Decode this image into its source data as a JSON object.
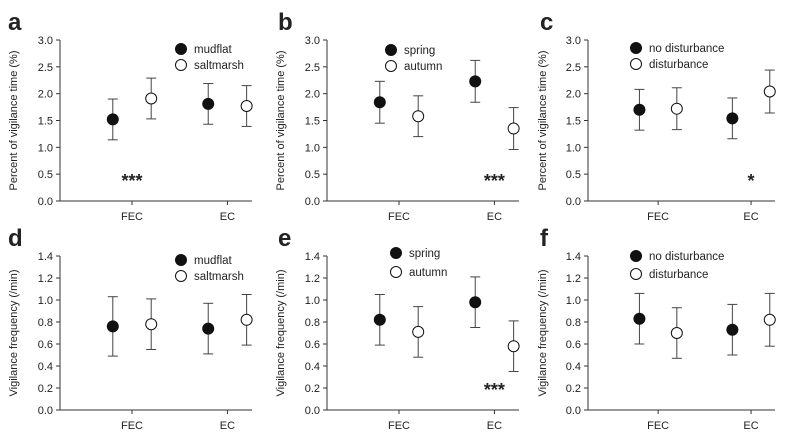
{
  "chart_data": [
    {
      "panel": "a",
      "type": "scatter",
      "categories": [
        "FEC",
        "EC"
      ],
      "ylabel": "Percent of vigilance time (%)",
      "ylim": [
        0,
        3.0
      ],
      "yticks": [
        "0.0",
        "0.5",
        "1.0",
        "1.5",
        "2.0",
        "2.5",
        "3.0"
      ],
      "series": [
        {
          "name": "mudflat",
          "marker": "filled",
          "values": [
            1.52,
            1.81
          ],
          "errors": [
            0.38,
            0.38
          ]
        },
        {
          "name": "saltmarsh",
          "marker": "open",
          "values": [
            1.91,
            1.77
          ],
          "errors": [
            0.38,
            0.38
          ]
        }
      ],
      "annotations": [
        {
          "text": "***",
          "category": "FEC"
        }
      ]
    },
    {
      "panel": "b",
      "type": "scatter",
      "categories": [
        "FEC",
        "EC"
      ],
      "ylabel": "Percent of vigilance time (%)",
      "ylim": [
        0,
        3.0
      ],
      "yticks": [
        "0.0",
        "0.5",
        "1.0",
        "1.5",
        "2.0",
        "2.5",
        "3.0"
      ],
      "series": [
        {
          "name": "spring",
          "marker": "filled",
          "values": [
            1.84,
            2.23
          ],
          "errors": [
            0.39,
            0.39
          ]
        },
        {
          "name": "autumn",
          "marker": "open",
          "values": [
            1.58,
            1.35
          ],
          "errors": [
            0.38,
            0.39
          ]
        }
      ],
      "annotations": [
        {
          "text": "***",
          "category": "EC"
        }
      ]
    },
    {
      "panel": "c",
      "type": "scatter",
      "categories": [
        "FEC",
        "EC"
      ],
      "ylabel": "Percent of vigilance time (%)",
      "ylim": [
        0,
        3.0
      ],
      "yticks": [
        "0.0",
        "0.5",
        "1.0",
        "1.5",
        "2.0",
        "2.5",
        "3.0"
      ],
      "series": [
        {
          "name": "no disturbance",
          "marker": "filled",
          "values": [
            1.7,
            1.54
          ],
          "errors": [
            0.38,
            0.38
          ]
        },
        {
          "name": "disturbance",
          "marker": "open",
          "values": [
            1.72,
            2.04
          ],
          "errors": [
            0.39,
            0.4
          ]
        }
      ],
      "annotations": [
        {
          "text": "*",
          "category": "EC"
        }
      ]
    },
    {
      "panel": "d",
      "type": "scatter",
      "categories": [
        "FEC",
        "EC"
      ],
      "ylabel": "Vigilance frequency (/min)",
      "ylim": [
        0,
        1.4
      ],
      "yticks": [
        "0.0",
        "0.2",
        "0.4",
        "0.6",
        "0.8",
        "1.0",
        "1.2",
        "1.4"
      ],
      "series": [
        {
          "name": "mudflat",
          "marker": "filled",
          "values": [
            0.76,
            0.74
          ],
          "errors": [
            0.27,
            0.23
          ]
        },
        {
          "name": "saltmarsh",
          "marker": "open",
          "values": [
            0.78,
            0.82
          ],
          "errors": [
            0.23,
            0.23
          ]
        }
      ],
      "annotations": []
    },
    {
      "panel": "e",
      "type": "scatter",
      "categories": [
        "FEC",
        "EC"
      ],
      "ylabel": "Vigilance frequency (/min)",
      "ylim": [
        0,
        1.4
      ],
      "yticks": [
        "0.0",
        "0.2",
        "0.4",
        "0.6",
        "0.8",
        "1.0",
        "1.2",
        "1.4"
      ],
      "series": [
        {
          "name": "spring",
          "marker": "filled",
          "values": [
            0.82,
            0.98
          ],
          "errors": [
            0.23,
            0.23
          ]
        },
        {
          "name": "autumn",
          "marker": "open",
          "values": [
            0.71,
            0.58
          ],
          "errors": [
            0.23,
            0.23
          ]
        }
      ],
      "annotations": [
        {
          "text": "***",
          "category": "EC"
        }
      ]
    },
    {
      "panel": "f",
      "type": "scatter",
      "categories": [
        "FEC",
        "EC"
      ],
      "ylabel": "Vigilance frequency (/min)",
      "ylim": [
        0,
        1.4
      ],
      "yticks": [
        "0.0",
        "0.2",
        "0.4",
        "0.6",
        "0.8",
        "1.0",
        "1.2",
        "1.4"
      ],
      "series": [
        {
          "name": "no disturbance",
          "marker": "filled",
          "values": [
            0.83,
            0.73
          ],
          "errors": [
            0.23,
            0.23
          ]
        },
        {
          "name": "disturbance",
          "marker": "open",
          "values": [
            0.7,
            0.82
          ],
          "errors": [
            0.23,
            0.24
          ]
        }
      ],
      "annotations": []
    }
  ]
}
